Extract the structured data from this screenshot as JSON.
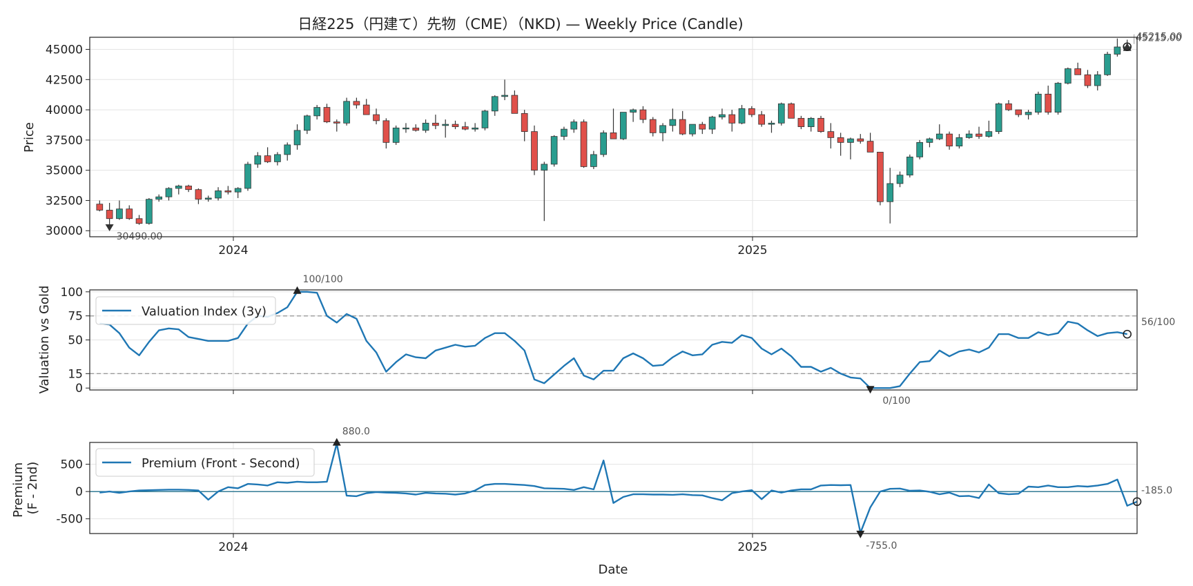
{
  "chart_data": [
    {
      "type": "candlestick",
      "title": "日経225（円建て）先物（CME）（NKD) — Weekly Price (Candle)",
      "ylabel": "Price",
      "ylim": [
        29500,
        46000
      ],
      "yticks": [
        "30000",
        "32500",
        "35000",
        "37500",
        "40000",
        "42500",
        "45000"
      ],
      "xticks": [
        "2024",
        "2025"
      ],
      "colors": {
        "up": "#2a9d8f",
        "down": "#e0504a",
        "wick": "#333333"
      },
      "min_annotation": "30490.00",
      "max_annotation": "45215.00",
      "last_annotation": "45215.00",
      "candles": [
        [
          32200,
          32500,
          31600,
          31700
        ],
        [
          31700,
          32300,
          30300,
          31000
        ],
        [
          31000,
          32500,
          30900,
          31800
        ],
        [
          31800,
          32100,
          30900,
          31000
        ],
        [
          31000,
          31300,
          30490,
          30600
        ],
        [
          30600,
          32700,
          30500,
          32600
        ],
        [
          32600,
          33000,
          32400,
          32800
        ],
        [
          32800,
          33600,
          32500,
          33500
        ],
        [
          33500,
          33800,
          33000,
          33700
        ],
        [
          33700,
          33800,
          33200,
          33400
        ],
        [
          33400,
          33500,
          32200,
          32600
        ],
        [
          32600,
          32900,
          32400,
          32700
        ],
        [
          32700,
          33600,
          32500,
          33300
        ],
        [
          33300,
          33700,
          33000,
          33200
        ],
        [
          33200,
          33600,
          32700,
          33500
        ],
        [
          33500,
          35700,
          33300,
          35500
        ],
        [
          35500,
          36500,
          35200,
          36200
        ],
        [
          36200,
          36900,
          35600,
          35700
        ],
        [
          35700,
          36500,
          35400,
          36300
        ],
        [
          36300,
          37300,
          35800,
          37100
        ],
        [
          37100,
          38800,
          36700,
          38300
        ],
        [
          38300,
          39600,
          38000,
          39500
        ],
        [
          39500,
          40400,
          39200,
          40200
        ],
        [
          40200,
          40500,
          38900,
          39000
        ],
        [
          39000,
          39200,
          38200,
          38900
        ],
        [
          38900,
          41000,
          38700,
          40700
        ],
        [
          40700,
          41000,
          40100,
          40400
        ],
        [
          40400,
          40900,
          39700,
          39600
        ],
        [
          39600,
          40100,
          38800,
          39100
        ],
        [
          39100,
          39300,
          36800,
          37300
        ],
        [
          37300,
          38700,
          37100,
          38500
        ],
        [
          38500,
          38900,
          38100,
          38500
        ],
        [
          38500,
          38800,
          38200,
          38300
        ],
        [
          38300,
          39200,
          38100,
          38900
        ],
        [
          38900,
          39600,
          38400,
          38700
        ],
        [
          38700,
          39200,
          37700,
          38800
        ],
        [
          38800,
          39100,
          38400,
          38600
        ],
        [
          38600,
          39000,
          38300,
          38400
        ],
        [
          38400,
          38900,
          38200,
          38500
        ],
        [
          38500,
          40000,
          38300,
          39900
        ],
        [
          39900,
          41200,
          39500,
          41100
        ],
        [
          41100,
          42500,
          40800,
          41200
        ],
        [
          41200,
          41600,
          39700,
          39700
        ],
        [
          39700,
          40000,
          37400,
          38200
        ],
        [
          38200,
          38700,
          34600,
          35000
        ],
        [
          35000,
          35700,
          30800,
          35500
        ],
        [
          35500,
          37900,
          35300,
          37800
        ],
        [
          37800,
          38600,
          37500,
          38400
        ],
        [
          38400,
          39200,
          38100,
          39000
        ],
        [
          39000,
          39200,
          35200,
          35300
        ],
        [
          35300,
          36600,
          35100,
          36300
        ],
        [
          36300,
          38300,
          36100,
          38100
        ],
        [
          38100,
          40100,
          37600,
          37600
        ],
        [
          37600,
          39800,
          37500,
          39800
        ],
        [
          39800,
          40100,
          39000,
          40000
        ],
        [
          40000,
          40300,
          38900,
          39200
        ],
        [
          39200,
          39400,
          37800,
          38100
        ],
        [
          38100,
          38900,
          37400,
          38700
        ],
        [
          38700,
          40100,
          38200,
          39200
        ],
        [
          39200,
          39900,
          37900,
          38000
        ],
        [
          38000,
          38700,
          37800,
          38800
        ],
        [
          38800,
          39000,
          38000,
          38400
        ],
        [
          38400,
          39500,
          38000,
          39400
        ],
        [
          39400,
          40100,
          39200,
          39600
        ],
        [
          39600,
          40000,
          38200,
          38900
        ],
        [
          38900,
          40400,
          38800,
          40100
        ],
        [
          40100,
          40300,
          39400,
          39600
        ],
        [
          39600,
          39900,
          38600,
          38800
        ],
        [
          38800,
          39100,
          38100,
          38900
        ],
        [
          38900,
          40600,
          38700,
          40500
        ],
        [
          40500,
          40600,
          39300,
          39300
        ],
        [
          39300,
          39500,
          38400,
          38600
        ],
        [
          38600,
          39400,
          38200,
          39300
        ],
        [
          39300,
          39500,
          38100,
          38200
        ],
        [
          38200,
          38900,
          36800,
          37700
        ],
        [
          37700,
          38100,
          36200,
          37300
        ],
        [
          37300,
          37700,
          35900,
          37600
        ],
        [
          37600,
          38000,
          37200,
          37400
        ],
        [
          37400,
          38100,
          36600,
          36500
        ],
        [
          36500,
          36500,
          32100,
          32400
        ],
        [
          32400,
          35200,
          30600,
          33900
        ],
        [
          33900,
          34900,
          33600,
          34600
        ],
        [
          34600,
          36300,
          34400,
          36100
        ],
        [
          36100,
          37500,
          35900,
          37300
        ],
        [
          37300,
          37700,
          36900,
          37600
        ],
        [
          37600,
          38800,
          37500,
          38000
        ],
        [
          38000,
          38200,
          36700,
          37000
        ],
        [
          37000,
          38000,
          36800,
          37700
        ],
        [
          37700,
          38300,
          37600,
          38000
        ],
        [
          38000,
          38600,
          37600,
          37800
        ],
        [
          37800,
          39100,
          37700,
          38200
        ],
        [
          38200,
          40600,
          38000,
          40500
        ],
        [
          40500,
          40800,
          39900,
          40000
        ],
        [
          40000,
          40000,
          39400,
          39600
        ],
        [
          39600,
          40000,
          39200,
          39800
        ],
        [
          39800,
          41500,
          39600,
          41300
        ],
        [
          41300,
          42000,
          39600,
          39800
        ],
        [
          39800,
          42300,
          39600,
          42200
        ],
        [
          42200,
          43500,
          42100,
          43400
        ],
        [
          43400,
          43900,
          42900,
          42900
        ],
        [
          42900,
          43300,
          41800,
          42000
        ],
        [
          42000,
          43200,
          41600,
          42900
        ],
        [
          42900,
          44800,
          42800,
          44600
        ],
        [
          44600,
          45900,
          44400,
          45200
        ],
        [
          45200,
          45800,
          44900,
          45215
        ]
      ]
    },
    {
      "type": "line",
      "ylabel": "Valuation vs Gold",
      "ylim": [
        -2,
        102
      ],
      "yticks": [
        "0",
        "15",
        "50",
        "75",
        "100"
      ],
      "reference_lines": [
        15,
        75
      ],
      "legend": "Valuation Index (3y)",
      "series_color": "#1f77b4",
      "max_annotation": "100/100",
      "min_annotation": "0/100",
      "last_annotation": "56/100",
      "values": [
        67,
        66,
        57,
        42,
        34,
        48,
        60,
        62,
        61,
        53,
        51,
        49,
        49,
        49,
        52,
        67,
        75,
        74,
        78,
        84,
        100,
        100,
        99,
        75,
        68,
        77,
        72,
        49,
        37,
        17,
        27,
        35,
        32,
        31,
        39,
        42,
        45,
        43,
        44,
        52,
        57,
        57,
        49,
        39,
        9,
        5,
        14,
        23,
        31,
        13,
        9,
        18,
        18,
        31,
        36,
        31,
        23,
        24,
        32,
        38,
        34,
        35,
        45,
        48,
        47,
        55,
        52,
        41,
        35,
        41,
        33,
        22,
        22,
        17,
        21,
        15,
        11,
        10,
        0,
        0,
        0,
        2,
        15,
        27,
        28,
        39,
        33,
        38,
        40,
        37,
        42,
        56,
        56,
        52,
        52,
        58,
        55,
        57,
        69,
        67,
        60,
        54,
        57,
        58,
        56
      ]
    },
    {
      "type": "line",
      "ylabel": "Premium (F - 2nd)",
      "ylim": [
        -770,
        900
      ],
      "yticks": [
        "-500",
        "0",
        "500"
      ],
      "legend": "Premium (Front - Second)",
      "series_color": "#1f77b4",
      "xlabel": "Date",
      "xticks": [
        "2024",
        "2025"
      ],
      "max_annotation": "880.0",
      "min_annotation": "-755.0",
      "last_annotation": "-185.0",
      "values": [
        -20,
        0,
        -25,
        0,
        20,
        25,
        30,
        35,
        35,
        30,
        20,
        -150,
        0,
        80,
        60,
        140,
        130,
        110,
        170,
        160,
        180,
        170,
        170,
        180,
        880,
        -75,
        -85,
        -30,
        -10,
        -20,
        -25,
        -35,
        -55,
        -25,
        -35,
        -40,
        -55,
        -35,
        20,
        120,
        140,
        140,
        130,
        120,
        100,
        60,
        55,
        50,
        30,
        80,
        40,
        570,
        -210,
        -100,
        -50,
        -50,
        -55,
        -55,
        -60,
        -50,
        -65,
        -70,
        -120,
        -160,
        -30,
        0,
        25,
        -140,
        20,
        -20,
        20,
        40,
        40,
        110,
        120,
        115,
        120,
        -755,
        -290,
        0,
        50,
        55,
        15,
        20,
        -5,
        -50,
        -20,
        -85,
        -80,
        -120,
        130,
        -30,
        -50,
        -40,
        90,
        80,
        110,
        80,
        80,
        100,
        90,
        110,
        140,
        220,
        -260,
        -185
      ]
    }
  ]
}
